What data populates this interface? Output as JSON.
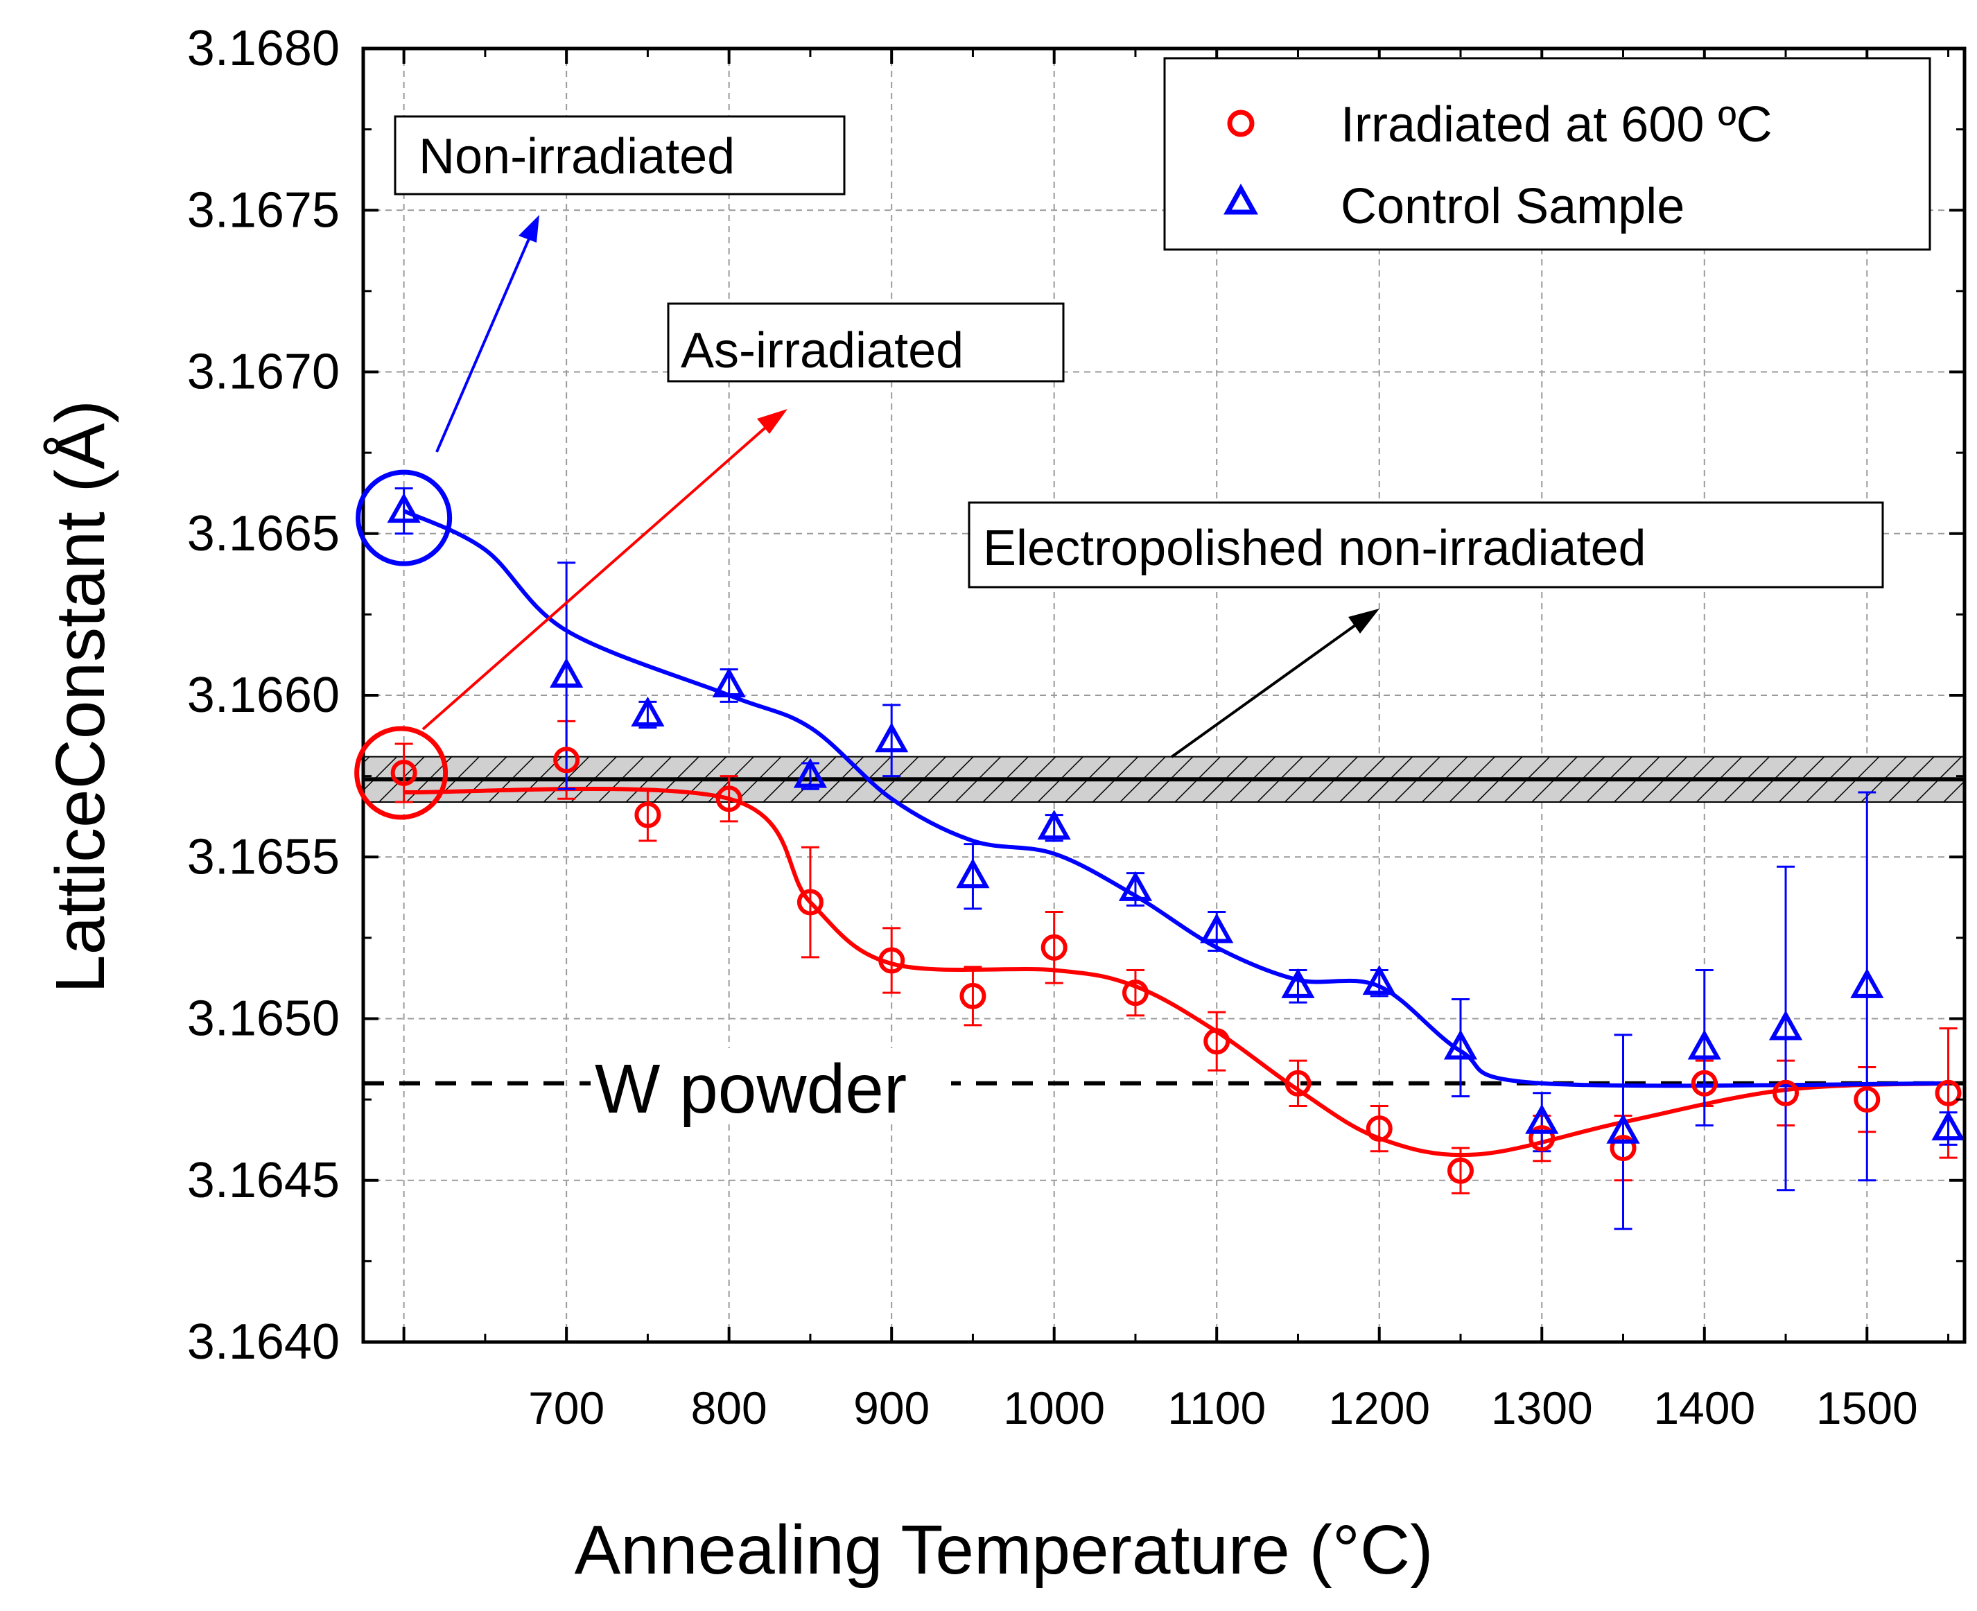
{
  "chart_data": {
    "type": "scatter",
    "title": "",
    "xlabel": "Annealing Temperature (°C)",
    "ylabel": "LatticeConstant (Å)",
    "xlim": [
      575,
      1560
    ],
    "ylim": [
      3.164,
      3.168
    ],
    "x_ticks": [
      700,
      800,
      900,
      1000,
      1100,
      1200,
      1300,
      1400,
      1500
    ],
    "x_tick_labels": [
      "700",
      "800",
      "900",
      "1000",
      "1100",
      "1200",
      "1300",
      "1400",
      "1500"
    ],
    "y_ticks": [
      3.164,
      3.1645,
      3.165,
      3.1655,
      3.166,
      3.1665,
      3.167,
      3.1675,
      3.168
    ],
    "y_tick_labels": [
      "3.1640",
      "3.1645",
      "3.1650",
      "3.1655",
      "3.1660",
      "3.1665",
      "3.1670",
      "3.1675",
      "3.1680"
    ],
    "grid": true,
    "legend_position": "top-right",
    "series": [
      {
        "name": "Irradiated at 600 °C",
        "legend_label": "Irradiated at 600 ºC",
        "color": "#ff0000",
        "marker": "circle",
        "x": [
          600,
          700,
          750,
          800,
          850,
          900,
          950,
          1000,
          1050,
          1100,
          1150,
          1200,
          1250,
          1300,
          1350,
          1400,
          1450,
          1500,
          1550
        ],
        "y": [
          3.16576,
          3.1658,
          3.16563,
          3.16568,
          3.16536,
          3.16518,
          3.16507,
          3.16522,
          3.16508,
          3.16493,
          3.1648,
          3.16466,
          3.16453,
          3.16463,
          3.1646,
          3.1648,
          3.16477,
          3.16475,
          3.16477
        ],
        "yerr": [
          9e-05,
          0.00012,
          8e-05,
          7e-05,
          0.00017,
          0.0001,
          9e-05,
          0.00011,
          7e-05,
          9e-05,
          7e-05,
          7e-05,
          7e-05,
          7e-05,
          0.0001,
          7e-05,
          0.0001,
          0.0001,
          0.0002
        ],
        "fit_x": [
          600,
          800,
          850,
          900,
          1000,
          1050,
          1100,
          1150,
          1200,
          1260,
          1350,
          1450,
          1550
        ],
        "fit_y": [
          3.1657,
          3.16568,
          3.16536,
          3.16517,
          3.16515,
          3.1651,
          3.16496,
          3.16478,
          3.16463,
          3.16458,
          3.16468,
          3.16478,
          3.1648
        ]
      },
      {
        "name": "Control Sample",
        "legend_label": "Control Sample",
        "color": "#0000ff",
        "marker": "triangle",
        "x": [
          600,
          700,
          750,
          800,
          850,
          900,
          950,
          1000,
          1050,
          1100,
          1150,
          1200,
          1250,
          1300,
          1350,
          1400,
          1450,
          1500,
          1550
        ],
        "y": [
          3.16657,
          3.16606,
          3.16594,
          3.16603,
          3.16575,
          3.16586,
          3.16544,
          3.16559,
          3.1654,
          3.16527,
          3.1651,
          3.16511,
          3.16491,
          3.16468,
          3.16465,
          3.16491,
          3.16497,
          3.1651,
          3.16466
        ],
        "yerr": [
          7e-05,
          0.00035,
          4e-05,
          5e-05,
          4e-05,
          0.00011,
          0.0001,
          4e-05,
          5e-05,
          6e-05,
          5e-05,
          4e-05,
          0.00015,
          9e-05,
          0.0003,
          0.00024,
          0.0005,
          0.0006,
          5e-05
        ],
        "fit_x": [
          600,
          650,
          700,
          800,
          850,
          900,
          950,
          1000,
          1050,
          1100,
          1150,
          1200,
          1250,
          1300,
          1550
        ],
        "fit_y": [
          3.16657,
          3.16645,
          3.1662,
          3.166,
          3.1659,
          3.16568,
          3.16555,
          3.16551,
          3.16538,
          3.16522,
          3.16512,
          3.1651,
          3.1649,
          3.1648,
          3.1648
        ]
      }
    ],
    "reference_lines": [
      {
        "name": "Electropolished non-irradiated",
        "y": 3.16574,
        "band": [
          3.16567,
          3.16581
        ],
        "style": "solid-hatched"
      },
      {
        "name": "W powder",
        "y": 3.1648,
        "style": "dashed"
      }
    ],
    "annotations": [
      {
        "text": "Non-irradiated",
        "points_to": "Control Sample at 600 °C"
      },
      {
        "text": "As-irradiated",
        "points_to": "Irradiated at 600 °C at 600 °C"
      },
      {
        "text": "Electropolished non-irradiated",
        "points_to": "reference band"
      },
      {
        "text": "W powder",
        "points_to": "dashed reference line"
      }
    ]
  },
  "colors": {
    "irradiated": "#ff0000",
    "control": "#0000ff",
    "axis": "#000000",
    "grid": "#9a9a9a",
    "band": "#d0d0d0"
  }
}
